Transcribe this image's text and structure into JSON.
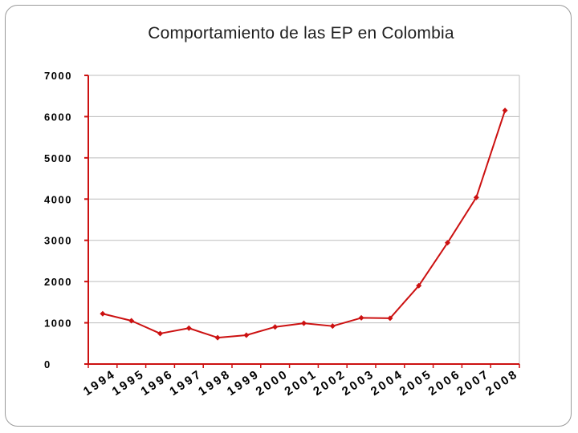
{
  "chart_data": {
    "type": "line",
    "title": "Comportamiento de las EP en Colombia",
    "xlabel": "",
    "ylabel": "",
    "categories": [
      "1994",
      "1995",
      "1996",
      "1997",
      "1998",
      "1999",
      "2000",
      "2001",
      "2002",
      "2003",
      "2004",
      "2005",
      "2006",
      "2007",
      "2008"
    ],
    "series": [
      {
        "values": [
          1220,
          1050,
          740,
          870,
          640,
          700,
          900,
          990,
          920,
          1120,
          1110,
          1900,
          2940,
          4040,
          6150
        ],
        "color": "#cc1111"
      }
    ],
    "ylim": [
      0,
      7000
    ],
    "yticks": [
      0,
      1000,
      2000,
      3000,
      4000,
      5000,
      6000,
      7000
    ],
    "grid": "horizontal",
    "legend": "none",
    "colors": {
      "line": "#cc1111",
      "axis": "#cc1111",
      "grid": "#bdbdbd"
    }
  }
}
